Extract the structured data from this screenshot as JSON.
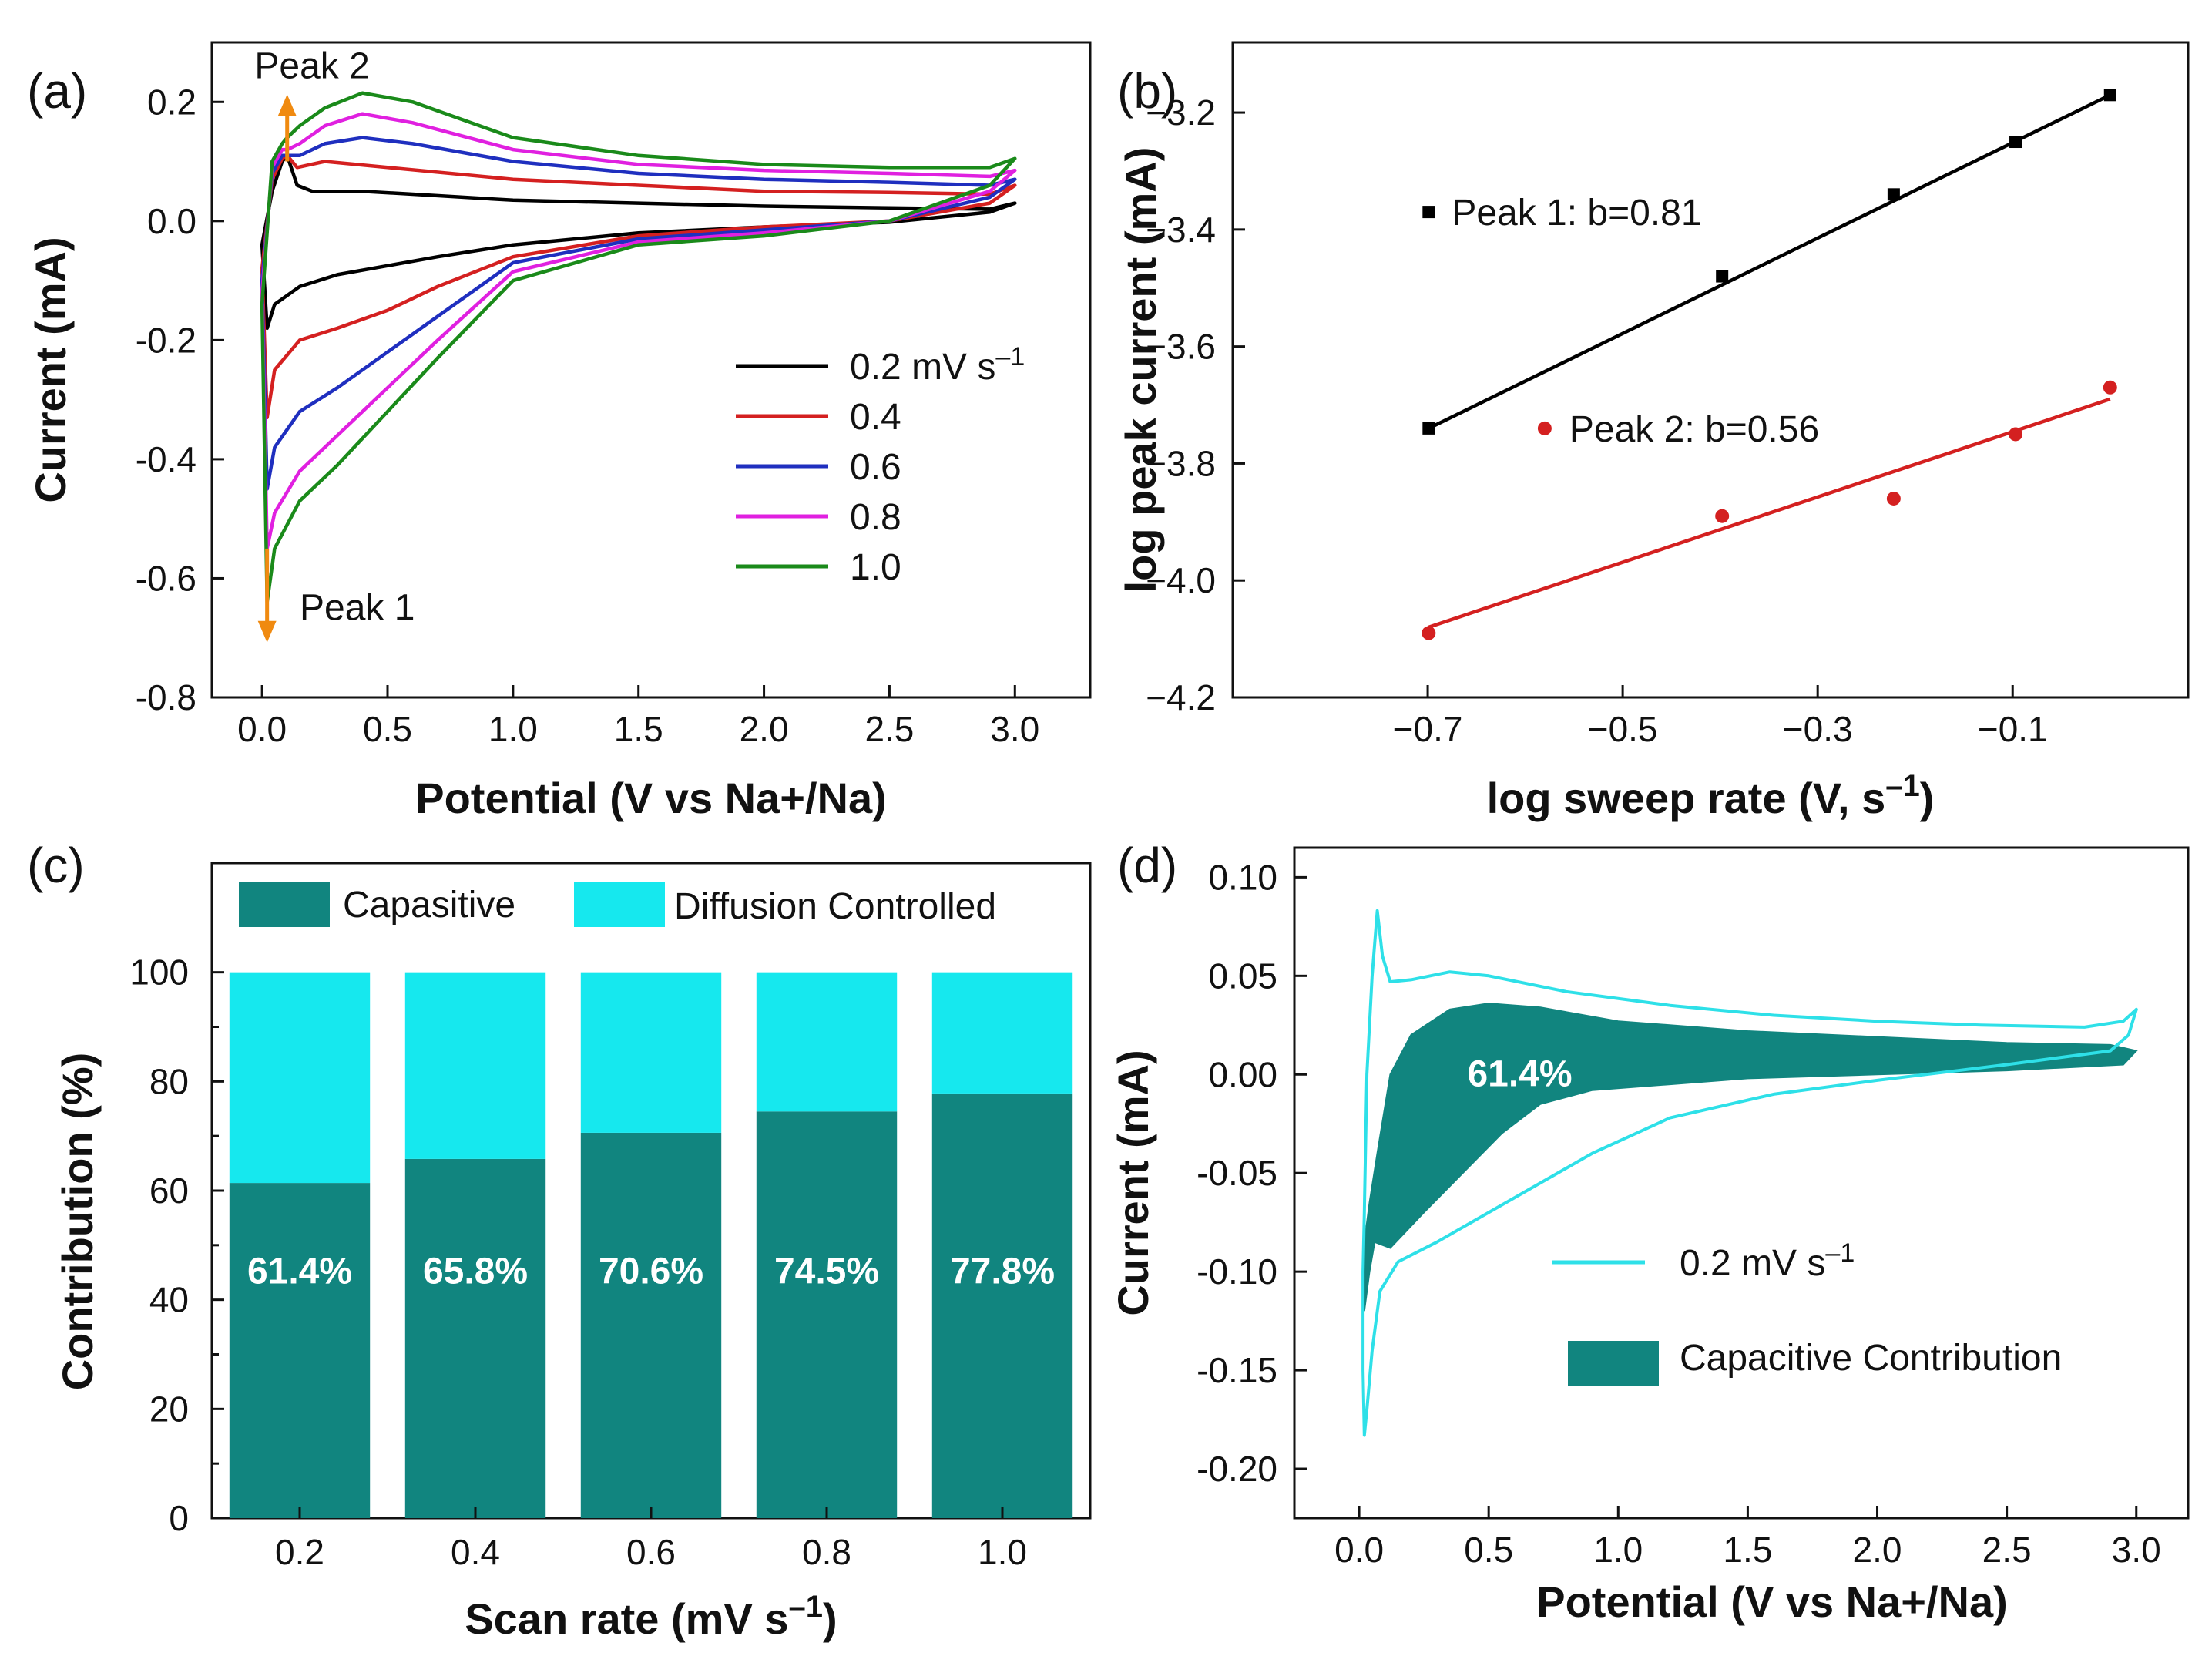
{
  "chart_data": [
    {
      "panel": "(a)",
      "type": "line",
      "xlabel": "Potential (V vs Na+/Na)",
      "ylabel": "Current (mA)",
      "xlim": [
        -0.2,
        3.3
      ],
      "ylim": [
        -0.8,
        0.3
      ],
      "xticks": [
        "0.0",
        "0.5",
        "1.0",
        "1.5",
        "2.0",
        "2.5",
        "3.0"
      ],
      "yticks": [
        "0.2",
        "0.0",
        "-0.2",
        "-0.4",
        "-0.6",
        "-0.8"
      ],
      "annotations": {
        "peak1": "Peak 1",
        "peak2": "Peak 2"
      },
      "legend_unit": "mV s",
      "legend_exp": "–1",
      "series": [
        {
          "name": "0.2",
          "color": "#000000",
          "anodic": [
            [
              0,
              -0.04
            ],
            [
              0.04,
              0.05
            ],
            [
              0.08,
              0.1
            ],
            [
              0.1,
              0.11
            ],
            [
              0.14,
              0.06
            ],
            [
              0.2,
              0.05
            ],
            [
              0.4,
              0.05
            ],
            [
              0.6,
              0.045
            ],
            [
              1.0,
              0.035
            ],
            [
              1.5,
              0.03
            ],
            [
              2.0,
              0.025
            ],
            [
              2.5,
              0.022
            ],
            [
              2.9,
              0.02
            ],
            [
              3.0,
              0.03
            ]
          ],
          "cathodic": [
            [
              3.0,
              0.03
            ],
            [
              2.9,
              0.015
            ],
            [
              2.5,
              -0.002
            ],
            [
              2.0,
              -0.01
            ],
            [
              1.5,
              -0.02
            ],
            [
              1.0,
              -0.04
            ],
            [
              0.7,
              -0.06
            ],
            [
              0.5,
              -0.075
            ],
            [
              0.3,
              -0.09
            ],
            [
              0.15,
              -0.11
            ],
            [
              0.05,
              -0.14
            ],
            [
              0.02,
              -0.18
            ]
          ]
        },
        {
          "name": "0.4",
          "color": "#d42020",
          "anodic": [
            [
              0,
              -0.08
            ],
            [
              0.04,
              0.07
            ],
            [
              0.08,
              0.105
            ],
            [
              0.1,
              0.11
            ],
            [
              0.14,
              0.09
            ],
            [
              0.25,
              0.1
            ],
            [
              0.5,
              0.09
            ],
            [
              1.0,
              0.07
            ],
            [
              1.5,
              0.06
            ],
            [
              2.0,
              0.05
            ],
            [
              2.5,
              0.048
            ],
            [
              2.9,
              0.045
            ],
            [
              3.0,
              0.06
            ]
          ],
          "cathodic": [
            [
              3.0,
              0.06
            ],
            [
              2.9,
              0.03
            ],
            [
              2.5,
              0.0
            ],
            [
              2.0,
              -0.01
            ],
            [
              1.5,
              -0.025
            ],
            [
              1.0,
              -0.06
            ],
            [
              0.7,
              -0.11
            ],
            [
              0.5,
              -0.15
            ],
            [
              0.3,
              -0.18
            ],
            [
              0.15,
              -0.2
            ],
            [
              0.05,
              -0.25
            ],
            [
              0.02,
              -0.33
            ]
          ]
        },
        {
          "name": "0.6",
          "color": "#1f2fbf",
          "anodic": [
            [
              0,
              -0.1
            ],
            [
              0.04,
              0.08
            ],
            [
              0.08,
              0.11
            ],
            [
              0.1,
              0.11
            ],
            [
              0.15,
              0.11
            ],
            [
              0.25,
              0.13
            ],
            [
              0.4,
              0.14
            ],
            [
              0.6,
              0.13
            ],
            [
              1.0,
              0.1
            ],
            [
              1.5,
              0.08
            ],
            [
              2.0,
              0.07
            ],
            [
              2.5,
              0.065
            ],
            [
              2.9,
              0.06
            ],
            [
              3.0,
              0.07
            ]
          ],
          "cathodic": [
            [
              3.0,
              0.07
            ],
            [
              2.9,
              0.04
            ],
            [
              2.5,
              0.0
            ],
            [
              2.0,
              -0.015
            ],
            [
              1.5,
              -0.03
            ],
            [
              1.0,
              -0.07
            ],
            [
              0.7,
              -0.16
            ],
            [
              0.5,
              -0.22
            ],
            [
              0.3,
              -0.28
            ],
            [
              0.15,
              -0.32
            ],
            [
              0.05,
              -0.38
            ],
            [
              0.02,
              -0.45
            ]
          ]
        },
        {
          "name": "0.8",
          "color": "#e020e0",
          "anodic": [
            [
              0,
              -0.12
            ],
            [
              0.04,
              0.09
            ],
            [
              0.08,
              0.12
            ],
            [
              0.1,
              0.12
            ],
            [
              0.15,
              0.13
            ],
            [
              0.25,
              0.16
            ],
            [
              0.4,
              0.18
            ],
            [
              0.6,
              0.165
            ],
            [
              1.0,
              0.12
            ],
            [
              1.5,
              0.095
            ],
            [
              2.0,
              0.085
            ],
            [
              2.5,
              0.08
            ],
            [
              2.9,
              0.075
            ],
            [
              3.0,
              0.085
            ]
          ],
          "cathodic": [
            [
              3.0,
              0.085
            ],
            [
              2.9,
              0.05
            ],
            [
              2.5,
              0.0
            ],
            [
              2.0,
              -0.02
            ],
            [
              1.5,
              -0.035
            ],
            [
              1.0,
              -0.085
            ],
            [
              0.7,
              -0.2
            ],
            [
              0.5,
              -0.28
            ],
            [
              0.3,
              -0.36
            ],
            [
              0.15,
              -0.42
            ],
            [
              0.05,
              -0.49
            ],
            [
              0.02,
              -0.55
            ]
          ]
        },
        {
          "name": "1.0",
          "color": "#1a8a1a",
          "anodic": [
            [
              0,
              -0.14
            ],
            [
              0.04,
              0.1
            ],
            [
              0.08,
              0.13
            ],
            [
              0.1,
              0.14
            ],
            [
              0.15,
              0.16
            ],
            [
              0.25,
              0.19
            ],
            [
              0.4,
              0.215
            ],
            [
              0.6,
              0.2
            ],
            [
              1.0,
              0.14
            ],
            [
              1.5,
              0.11
            ],
            [
              2.0,
              0.095
            ],
            [
              2.5,
              0.09
            ],
            [
              2.9,
              0.09
            ],
            [
              3.0,
              0.105
            ]
          ],
          "cathodic": [
            [
              3.0,
              0.105
            ],
            [
              2.9,
              0.06
            ],
            [
              2.5,
              0.0
            ],
            [
              2.0,
              -0.025
            ],
            [
              1.5,
              -0.04
            ],
            [
              1.0,
              -0.1
            ],
            [
              0.7,
              -0.23
            ],
            [
              0.5,
              -0.32
            ],
            [
              0.3,
              -0.41
            ],
            [
              0.15,
              -0.47
            ],
            [
              0.05,
              -0.55
            ],
            [
              0.02,
              -0.64
            ]
          ]
        }
      ]
    },
    {
      "panel": "(b)",
      "type": "scatter",
      "xlabel": "log sweep rate (V, s",
      "xlabel_exp": "–1",
      "xlabel_close": ")",
      "ylabel": "log peak current (mA)",
      "xlim": [
        -0.9,
        0.08
      ],
      "ylim": [
        -4.2,
        -3.08
      ],
      "xticks": [
        -0.7,
        -0.5,
        -0.3,
        -0.1
      ],
      "yticks": [
        -3.2,
        -3.4,
        -3.6,
        -3.8,
        -4.0,
        -4.2
      ],
      "series": [
        {
          "name": "Peak 1: b=0.81",
          "color": "#000000",
          "marker": "square",
          "x": [
            -0.699,
            -0.398,
            -0.222,
            -0.097,
            0.0
          ],
          "y": [
            -3.74,
            -3.48,
            -3.34,
            -3.25,
            -3.17
          ],
          "fit": [
            [
              -0.699,
              -3.74
            ],
            [
              0.0,
              -3.17
            ]
          ]
        },
        {
          "name": "Peak 2: b=0.56",
          "color": "#d42020",
          "marker": "circle",
          "x": [
            -0.699,
            -0.398,
            -0.222,
            -0.097,
            0.0
          ],
          "y": [
            -4.09,
            -3.89,
            -3.86,
            -3.75,
            -3.67
          ],
          "fit": [
            [
              -0.699,
              -4.08
            ],
            [
              0.0,
              -3.69
            ]
          ]
        }
      ]
    },
    {
      "panel": "(c)",
      "type": "bar",
      "stacked": true,
      "xlabel": "Scan rate (mV s",
      "xlabel_exp": "–1",
      "xlabel_close": ")",
      "ylabel": "Contribution (%)",
      "ylim": [
        0,
        120
      ],
      "yticks": [
        0,
        20,
        40,
        60,
        80,
        100
      ],
      "categories": [
        "0.2",
        "0.4",
        "0.6",
        "0.8",
        "1.0"
      ],
      "series": [
        {
          "name": "Capasitive",
          "color": "#11857f",
          "values": [
            61.4,
            65.8,
            70.6,
            74.5,
            77.8
          ]
        },
        {
          "name": "Diffusion Controlled",
          "color": "#16e8ee",
          "values": [
            38.6,
            34.2,
            29.4,
            25.5,
            22.2
          ]
        }
      ],
      "labels": [
        "61.4%",
        "65.8%",
        "70.6%",
        "74.5%",
        "77.8%"
      ]
    },
    {
      "panel": "(d)",
      "type": "area",
      "xlabel": "Potential (V vs Na+/Na)",
      "ylabel": "Current (mA)",
      "xlim": [
        -0.25,
        3.2
      ],
      "ylim": [
        -0.225,
        0.115
      ],
      "xticks": [
        "0.0",
        "0.5",
        "1.0",
        "1.5",
        "2.0",
        "2.5",
        "3.0"
      ],
      "yticks": [
        "0.10",
        "0.05",
        "0.00",
        "-0.05",
        "-0.10",
        "-0.15",
        "-0.20"
      ],
      "annotation": "61.4%",
      "legend": {
        "cv": "0.2 mV s",
        "cv_exp": "–1",
        "area": "Capacitive Contribution"
      },
      "cv_color": "#2ee0e8",
      "area_color": "#11857f",
      "cv_curve": [
        [
          0.02,
          -0.07
        ],
        [
          0.03,
          0.0
        ],
        [
          0.05,
          0.05
        ],
        [
          0.07,
          0.083
        ],
        [
          0.09,
          0.06
        ],
        [
          0.12,
          0.047
        ],
        [
          0.2,
          0.048
        ],
        [
          0.35,
          0.052
        ],
        [
          0.5,
          0.05
        ],
        [
          0.8,
          0.042
        ],
        [
          1.2,
          0.035
        ],
        [
          1.6,
          0.03
        ],
        [
          2.0,
          0.027
        ],
        [
          2.4,
          0.025
        ],
        [
          2.8,
          0.024
        ],
        [
          2.95,
          0.027
        ],
        [
          3.0,
          0.033
        ],
        [
          2.97,
          0.02
        ],
        [
          2.9,
          0.012
        ],
        [
          2.5,
          0.005
        ],
        [
          2.0,
          -0.003
        ],
        [
          1.6,
          -0.01
        ],
        [
          1.2,
          -0.022
        ],
        [
          0.9,
          -0.04
        ],
        [
          0.7,
          -0.055
        ],
        [
          0.5,
          -0.07
        ],
        [
          0.3,
          -0.085
        ],
        [
          0.15,
          -0.095
        ],
        [
          0.08,
          -0.11
        ],
        [
          0.05,
          -0.14
        ],
        [
          0.03,
          -0.17
        ],
        [
          0.02,
          -0.183
        ],
        [
          0.015,
          -0.15
        ],
        [
          0.015,
          -0.1
        ],
        [
          0.02,
          -0.07
        ]
      ],
      "capacitive_area": [
        [
          0.02,
          -0.12
        ],
        [
          0.025,
          -0.08
        ],
        [
          0.04,
          -0.065
        ],
        [
          0.07,
          -0.04
        ],
        [
          0.12,
          0.0
        ],
        [
          0.2,
          0.02
        ],
        [
          0.35,
          0.033
        ],
        [
          0.5,
          0.036
        ],
        [
          0.7,
          0.034
        ],
        [
          1.0,
          0.027
        ],
        [
          1.5,
          0.022
        ],
        [
          2.0,
          0.019
        ],
        [
          2.5,
          0.016
        ],
        [
          2.9,
          0.015
        ],
        [
          3.0,
          0.012
        ],
        [
          2.95,
          0.005
        ],
        [
          2.5,
          0.002
        ],
        [
          2.0,
          0.0
        ],
        [
          1.5,
          -0.002
        ],
        [
          1.2,
          -0.005
        ],
        [
          0.9,
          -0.008
        ],
        [
          0.7,
          -0.015
        ],
        [
          0.55,
          -0.03
        ],
        [
          0.4,
          -0.05
        ],
        [
          0.25,
          -0.07
        ],
        [
          0.12,
          -0.088
        ],
        [
          0.06,
          -0.085
        ],
        [
          0.04,
          -0.1
        ],
        [
          0.02,
          -0.12
        ]
      ]
    }
  ]
}
